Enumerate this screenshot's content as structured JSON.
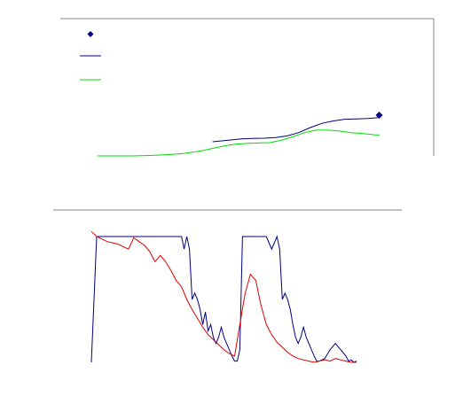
{
  "colors": {
    "background": "#ffffff",
    "frame": "#8a8a8a",
    "navy": "#000080",
    "green": "#00dd00",
    "red": "#dd0000"
  },
  "chart_data": [
    {
      "type": "line",
      "title": "",
      "xlabel": "",
      "ylabel": "",
      "grid": false,
      "legend": {
        "position": "top-left",
        "labels": [
          "",
          "",
          ""
        ]
      },
      "xlim": [
        0,
        100
      ],
      "ylim": [
        0,
        100
      ],
      "series": [
        {
          "marker": "diamond",
          "color": "#000080",
          "x": [
            98
          ],
          "y": [
            49
          ]
        },
        {
          "color": "#000080",
          "x": [
            40,
            46,
            50,
            54,
            58,
            62,
            66,
            70,
            74,
            78,
            82,
            86,
            90,
            94,
            98
          ],
          "y": [
            17,
            19,
            20.5,
            21,
            21.3,
            22,
            24,
            28,
            34,
            39,
            42,
            44,
            44.5,
            45,
            46
          ]
        },
        {
          "color": "#00dd00",
          "x": [
            0,
            6,
            12,
            18,
            24,
            30,
            36,
            40,
            44,
            48,
            52,
            56,
            60,
            64,
            68,
            72,
            76,
            80,
            84,
            88,
            92,
            96,
            98
          ],
          "y": [
            0,
            0,
            0,
            0.5,
            1.5,
            3,
            6,
            9,
            12,
            14,
            15,
            15.5,
            16,
            19,
            23,
            28,
            31,
            31,
            30,
            28,
            27,
            25.5,
            25
          ]
        }
      ]
    },
    {
      "type": "line",
      "title": "",
      "xlabel": "",
      "ylabel": "",
      "grid": false,
      "xlim": [
        0,
        100
      ],
      "ylim": [
        0,
        100
      ],
      "series": [
        {
          "color": "#000080",
          "x": [
            0,
            2,
            4,
            8,
            12,
            16,
            20,
            24,
            28,
            30,
            32,
            34,
            35,
            36,
            37,
            38,
            39,
            40,
            41,
            42,
            43,
            44,
            45,
            46,
            47,
            48,
            49,
            50,
            51,
            52,
            53,
            54,
            55,
            56,
            57,
            58,
            59,
            60,
            61,
            62,
            64,
            66,
            68,
            70,
            71,
            72,
            73,
            74,
            75,
            76,
            77,
            78,
            79,
            80,
            81,
            82,
            83,
            84,
            85,
            86,
            88,
            90,
            92,
            94,
            96,
            97,
            98,
            99,
            100
          ],
          "y": [
            0,
            100,
            100,
            100,
            100,
            100,
            100,
            100,
            100,
            100,
            100,
            100,
            90,
            100,
            90,
            50,
            55,
            50,
            42,
            30,
            40,
            25,
            30,
            20,
            15,
            20,
            28,
            20,
            15,
            10,
            5,
            1,
            1,
            10,
            100,
            100,
            100,
            100,
            100,
            100,
            100,
            100,
            90,
            100,
            90,
            50,
            55,
            50,
            42,
            30,
            20,
            15,
            20,
            28,
            20,
            15,
            10,
            5,
            1,
            1,
            3,
            10,
            15,
            10,
            5,
            1,
            2,
            0,
            1
          ]
        },
        {
          "color": "#dd0000",
          "x": [
            0,
            2,
            4,
            6,
            8,
            10,
            12,
            14,
            16,
            18,
            20,
            22,
            24,
            26,
            28,
            30,
            32,
            34,
            36,
            38,
            40,
            42,
            44,
            46,
            48,
            50,
            52,
            54,
            56,
            58,
            60,
            62,
            64,
            66,
            68,
            70,
            72,
            74,
            76,
            78,
            80,
            82,
            84,
            86,
            88,
            90,
            92,
            94,
            96,
            98,
            100
          ],
          "y": [
            104,
            100,
            98,
            96,
            95,
            94,
            92,
            90,
            99,
            96,
            93,
            88,
            80,
            85,
            80,
            73,
            65,
            60,
            50,
            42,
            35,
            28,
            22,
            18,
            14,
            10,
            7,
            5,
            30,
            55,
            70,
            65,
            45,
            30,
            22,
            16,
            12,
            8,
            5,
            3,
            2,
            1,
            0,
            1,
            2,
            1,
            3,
            2,
            1,
            0,
            0
          ]
        }
      ]
    }
  ]
}
